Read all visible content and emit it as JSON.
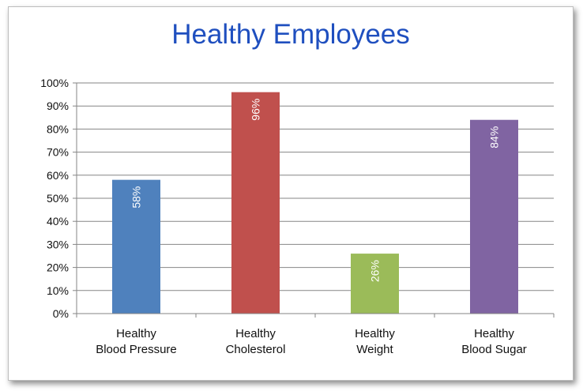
{
  "chart_data": {
    "type": "bar",
    "title": "Healthy Employees",
    "categories": [
      [
        "Healthy",
        "Blood Pressure"
      ],
      [
        "Healthy",
        "Cholesterol"
      ],
      [
        "Healthy",
        "Weight"
      ],
      [
        "Healthy",
        "Blood Sugar"
      ]
    ],
    "values": [
      0.58,
      0.96,
      0.26,
      0.84
    ],
    "data_labels": [
      "58%",
      "96%",
      "26%",
      "84%"
    ],
    "colors": [
      "#4f81bd",
      "#c0504d",
      "#9bbb59",
      "#8064a2"
    ],
    "ylim": [
      0,
      1
    ],
    "yticks": [
      "0%",
      "10%",
      "20%",
      "30%",
      "40%",
      "50%",
      "60%",
      "70%",
      "80%",
      "90%",
      "100%"
    ],
    "grid": true,
    "legend": "none",
    "data_label_color": "#ffffff",
    "title_color": "#1f4fbf"
  }
}
